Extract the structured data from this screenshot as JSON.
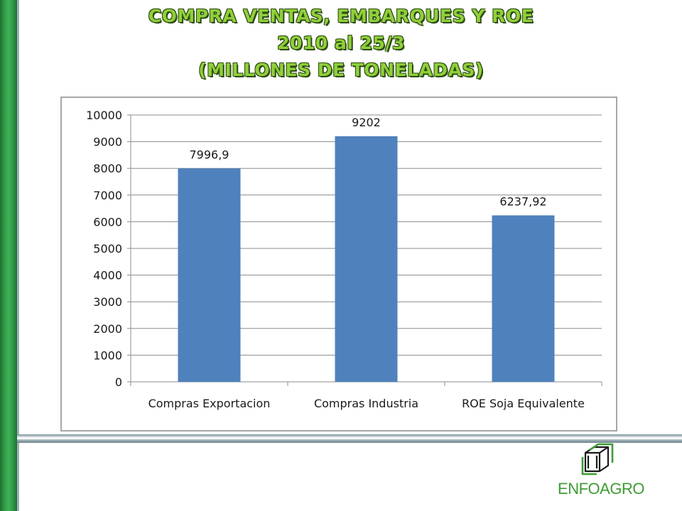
{
  "title": {
    "line1": "COMPRA VENTAS, EMBARQUES Y ROE",
    "line2": "2010  al 25/3",
    "line3": "(MILLONES DE TONELADAS)"
  },
  "logo": {
    "text": "ENFOAGRO",
    "icon": "cube-icon",
    "color": "#3f9b35"
  },
  "colors": {
    "bar": "#4f81bd",
    "title": "#8fcf3a",
    "side_bar": "#2e9a45"
  },
  "chart_data": {
    "type": "bar",
    "categories": [
      "Compras Exportacion",
      "Compras Industria",
      "ROE Soja Equivalente"
    ],
    "values": [
      7996.9,
      9202,
      6237.92
    ],
    "data_labels": [
      "7996,9",
      "9202",
      "6237,92"
    ],
    "ylim": [
      0,
      10000
    ],
    "yticks": [
      "0",
      "1000",
      "2000",
      "3000",
      "4000",
      "5000",
      "6000",
      "7000",
      "8000",
      "9000",
      "10000"
    ],
    "grid": true,
    "legend": "none"
  }
}
